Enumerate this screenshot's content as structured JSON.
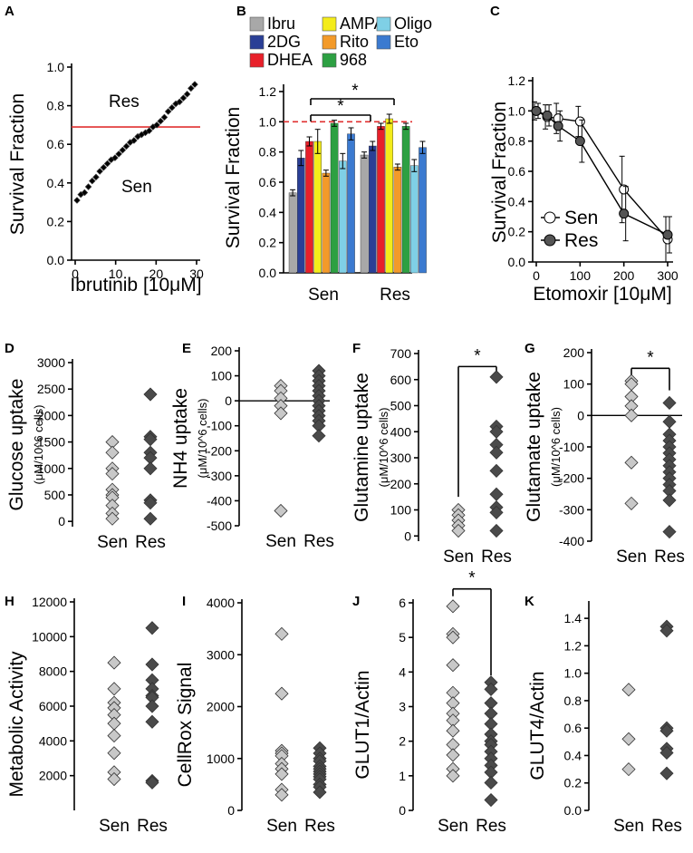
{
  "colors": {
    "ibru": "#a8a8a8",
    "dg2": "#2a3f96",
    "dhea": "#e8202a",
    "ampa": "#f4ec1a",
    "rito": "#f39a2a",
    "c968": "#2da042",
    "oligo": "#7fd0e6",
    "eto": "#3b7ad0",
    "red_line": "#e03030",
    "sen_marker": "#c8c8c8",
    "res_marker": "#4a4a4a"
  },
  "chart_data": [
    {
      "panel": "A",
      "type": "scatter",
      "xlabel": "Ibrutinib [10μM]",
      "ylabel": "Survival Fraction",
      "xlim": [
        0,
        30
      ],
      "ylim": [
        0,
        1.0
      ],
      "xticks": [
        "0",
        "10",
        "20",
        "30"
      ],
      "yticks": [
        "0.0",
        "0.2",
        "0.4",
        "0.6",
        "0.8",
        "1.0"
      ],
      "threshold": 0.69,
      "annotations": [
        "Res",
        "Sen"
      ],
      "points": [
        0.31,
        0.34,
        0.35,
        0.38,
        0.41,
        0.43,
        0.46,
        0.48,
        0.5,
        0.52,
        0.53,
        0.55,
        0.57,
        0.59,
        0.61,
        0.62,
        0.64,
        0.65,
        0.66,
        0.67,
        0.69,
        0.7,
        0.72,
        0.74,
        0.77,
        0.79,
        0.81,
        0.82,
        0.84,
        0.86,
        0.89,
        0.91
      ]
    },
    {
      "panel": "B",
      "type": "bar",
      "ylabel": "Survival Fraction",
      "ylim": [
        0,
        1.2
      ],
      "yticks": [
        "0.0",
        "0.2",
        "0.4",
        "0.6",
        "0.8",
        "1.0",
        "1.2"
      ],
      "categories": [
        "Sen",
        "Res"
      ],
      "reference": 1.0,
      "significance": [
        "*",
        "*"
      ],
      "legend": [
        "Ibru",
        "AMPA",
        "Oligo",
        "2DG",
        "Rito",
        "Eto",
        "DHEA",
        "968"
      ],
      "series": [
        {
          "name": "Ibru",
          "values": [
            0.53,
            0.78
          ],
          "errors": [
            0.02,
            0.02
          ]
        },
        {
          "name": "2DG",
          "values": [
            0.76,
            0.84
          ],
          "errors": [
            0.05,
            0.03
          ]
        },
        {
          "name": "DHEA",
          "values": [
            0.87,
            0.97
          ],
          "errors": [
            0.03,
            0.02
          ]
        },
        {
          "name": "AMPA",
          "values": [
            0.87,
            1.02
          ],
          "errors": [
            0.08,
            0.03
          ]
        },
        {
          "name": "Rito",
          "values": [
            0.66,
            0.7
          ],
          "errors": [
            0.02,
            0.02
          ]
        },
        {
          "name": "968",
          "values": [
            0.99,
            0.97
          ],
          "errors": [
            0.02,
            0.02
          ]
        },
        {
          "name": "Oligo",
          "values": [
            0.74,
            0.71
          ],
          "errors": [
            0.05,
            0.04
          ]
        },
        {
          "name": "Eto",
          "values": [
            0.92,
            0.83
          ],
          "errors": [
            0.04,
            0.04
          ]
        }
      ]
    },
    {
      "panel": "C",
      "type": "line",
      "xlabel": "Etomoxir [10μM]",
      "ylabel": "Survival Fraction",
      "xlim": [
        0,
        300
      ],
      "ylim": [
        0,
        1.2
      ],
      "xticks": [
        "0",
        "100",
        "200",
        "300"
      ],
      "yticks": [
        "0.0",
        "0.2",
        "0.4",
        "0.6",
        "0.8",
        "1.0",
        "1.2"
      ],
      "x": [
        0,
        25,
        50,
        100,
        200,
        300
      ],
      "series": [
        {
          "name": "Sen",
          "values": [
            1.0,
            0.96,
            0.95,
            0.93,
            0.48,
            0.15
          ],
          "errors": [
            0.06,
            0.08,
            0.1,
            0.1,
            0.22,
            0.15
          ]
        },
        {
          "name": "Res",
          "values": [
            1.0,
            0.97,
            0.9,
            0.8,
            0.32,
            0.18
          ],
          "errors": [
            0.05,
            0.07,
            0.1,
            0.14,
            0.18,
            0.12
          ]
        }
      ]
    },
    {
      "panel": "D",
      "type": "scatter",
      "ylabel": "Glucose uptake",
      "sublabel": "(μM/10^6 cells)",
      "categories": [
        "Sen",
        "Res"
      ],
      "ylim": [
        -100,
        3000
      ],
      "yticks": [
        "0",
        "500",
        "1000",
        "1500",
        "2000",
        "2500",
        "3000"
      ],
      "ytick_values": [
        0,
        500,
        1000,
        1500,
        2000,
        2500,
        3000
      ],
      "sen": [
        1500,
        1300,
        1000,
        900,
        600,
        500,
        450,
        300,
        150,
        50
      ],
      "res": [
        2400,
        1600,
        1550,
        1300,
        1200,
        1000,
        400,
        350,
        50
      ]
    },
    {
      "panel": "E",
      "type": "scatter",
      "ylabel": "NH4 uptake",
      "sublabel": "(μM/10^6 cells)",
      "categories": [
        "Sen",
        "Res"
      ],
      "ylim": [
        -500,
        200
      ],
      "zero_line": true,
      "yticks": [
        "200",
        "100",
        "0",
        "-100",
        "-200",
        "-300",
        "-400",
        "-500"
      ],
      "ytick_values": [
        200,
        100,
        0,
        -100,
        -200,
        -300,
        -400,
        -500
      ],
      "sen": [
        60,
        40,
        10,
        -20,
        -50,
        -440
      ],
      "res": [
        120,
        100,
        80,
        60,
        40,
        20,
        0,
        -20,
        -40,
        -60,
        -80,
        -100,
        -140
      ]
    },
    {
      "panel": "F",
      "type": "scatter",
      "ylabel": "Glutamine uptake",
      "sublabel": "(μM/10^6 cells)",
      "categories": [
        "Sen",
        "Res"
      ],
      "ylim": [
        -20,
        700
      ],
      "significance": "*",
      "yticks": [
        "0",
        "100",
        "200",
        "300",
        "400",
        "500",
        "600",
        "700"
      ],
      "ytick_values": [
        0,
        100,
        200,
        300,
        400,
        500,
        600,
        700
      ],
      "sen": [
        100,
        80,
        60,
        40,
        20
      ],
      "res": [
        610,
        420,
        400,
        350,
        320,
        250,
        160,
        110,
        90,
        20
      ]
    },
    {
      "panel": "G",
      "type": "scatter",
      "ylabel": "Glutamate uptake",
      "sublabel": "(μM/10^6 cells)",
      "categories": [
        "Sen",
        "Res"
      ],
      "ylim": [
        -400,
        200
      ],
      "zero_line": true,
      "significance": "*",
      "yticks": [
        "200",
        "100",
        "0",
        "-100",
        "-200",
        "-300",
        "-400"
      ],
      "ytick_values": [
        200,
        100,
        0,
        -100,
        -200,
        -300,
        -400
      ],
      "sen": [
        110,
        100,
        60,
        30,
        0,
        -150,
        -280
      ],
      "res": [
        40,
        -20,
        -60,
        -80,
        -100,
        -120,
        -140,
        -160,
        -180,
        -200,
        -220,
        -240,
        -270,
        -370
      ]
    },
    {
      "panel": "H",
      "type": "scatter",
      "ylabel": "Metabolic Activity",
      "categories": [
        "Sen",
        "Res"
      ],
      "ylim": [
        0,
        12000
      ],
      "yticks": [
        "2000",
        "4000",
        "6000",
        "8000",
        "10000",
        "12000"
      ],
      "ytick_values": [
        2000,
        4000,
        6000,
        8000,
        10000,
        12000
      ],
      "sen": [
        8500,
        7000,
        6200,
        5900,
        5500,
        5000,
        4300,
        3300,
        2200,
        1800
      ],
      "res": [
        10500,
        8400,
        7500,
        7000,
        6600,
        6500,
        6000,
        5100,
        1700,
        1600
      ]
    },
    {
      "panel": "I",
      "type": "scatter",
      "ylabel": "CellRox Signal",
      "categories": [
        "Sen",
        "Res"
      ],
      "ylim": [
        0,
        4000
      ],
      "yticks": [
        "0",
        "1000",
        "2000",
        "3000",
        "4000"
      ],
      "ytick_values": [
        0,
        1000,
        2000,
        3000,
        4000
      ],
      "sen": [
        3400,
        2250,
        1150,
        1100,
        1050,
        900,
        800,
        700,
        400,
        300
      ],
      "res": [
        1200,
        1100,
        1000,
        950,
        850,
        800,
        750,
        700,
        650,
        600,
        500,
        450,
        350
      ]
    },
    {
      "panel": "J",
      "type": "scatter",
      "ylabel": "GLUT1/Actin",
      "categories": [
        "Sen",
        "Res"
      ],
      "ylim": [
        0,
        6
      ],
      "significance": "*",
      "yticks": [
        "0",
        "1",
        "2",
        "3",
        "4",
        "5",
        "6"
      ],
      "ytick_values": [
        0,
        1,
        2,
        3,
        4,
        5,
        6
      ],
      "sen": [
        5.9,
        5.1,
        5.0,
        4.2,
        3.4,
        3.1,
        2.8,
        2.6,
        2.3,
        1.9,
        1.6,
        1.2,
        1.0
      ],
      "res": [
        3.7,
        3.5,
        3.1,
        2.8,
        2.5,
        2.2,
        2.0,
        1.9,
        1.7,
        1.5,
        1.3,
        1.1,
        0.8,
        0.3
      ]
    },
    {
      "panel": "K",
      "type": "scatter",
      "ylabel": "GLUT4/Actin",
      "categories": [
        "Sen",
        "Res"
      ],
      "ylim": [
        0,
        1.5
      ],
      "yticks": [
        "0.0",
        "0.2",
        "0.4",
        "0.6",
        "0.8",
        "1.0",
        "1.2",
        "1.4"
      ],
      "ytick_values": [
        0,
        0.2,
        0.4,
        0.6,
        0.8,
        1.0,
        1.2,
        1.4
      ],
      "sen": [
        0.88,
        0.52,
        0.3
      ],
      "res": [
        1.34,
        1.31,
        0.6,
        0.58,
        0.45,
        0.42,
        0.27
      ]
    }
  ]
}
